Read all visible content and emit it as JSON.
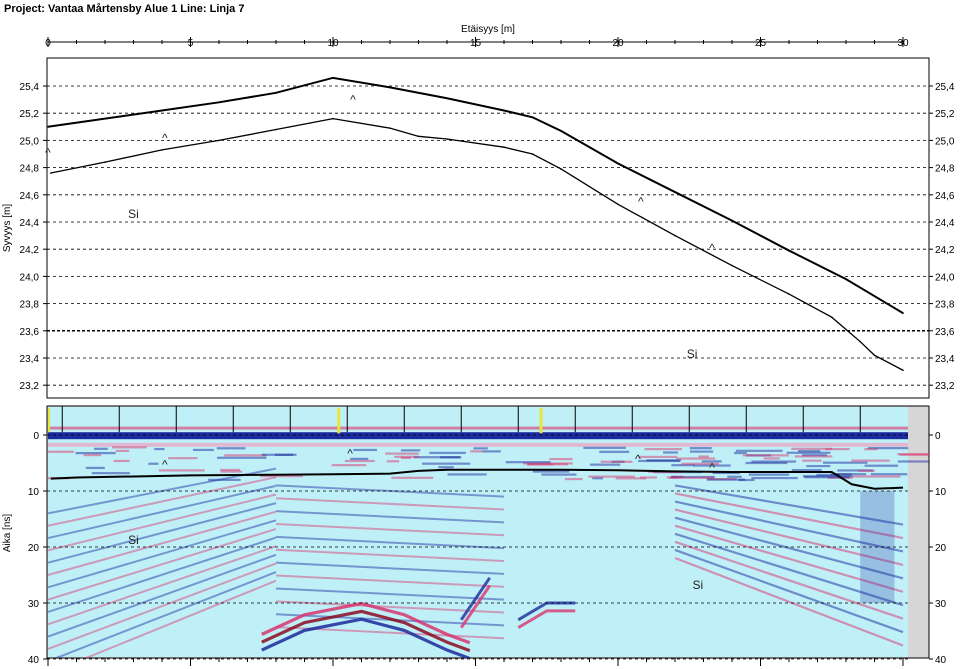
{
  "title": "Project: Vantaa Mårtensby Alue 1  Line: Linja 7",
  "chart_data": [
    {
      "type": "line",
      "xlabel": "Etäisyys [m]",
      "ylabel": "Syvyys [m]",
      "xlim": [
        0,
        30
      ],
      "ylim": [
        23.1,
        25.6
      ],
      "xticks": [
        "0",
        "5",
        "10",
        "15",
        "20",
        "25",
        "30"
      ],
      "yticks": [
        "25,4",
        "25,2",
        "25,0",
        "24,8",
        "24,6",
        "24,4",
        "24,2",
        "24,0",
        "23,8",
        "23,6",
        "23,4",
        "23,2"
      ],
      "series": [
        {
          "x": [
            0,
            2,
            4,
            6,
            8,
            10,
            12,
            14,
            16,
            17,
            18,
            20,
            22,
            24,
            26,
            28,
            30
          ],
          "y": [
            25.1,
            25.16,
            25.22,
            25.28,
            25.35,
            25.46,
            25.39,
            25.31,
            25.22,
            25.17,
            25.07,
            24.83,
            24.62,
            24.41,
            24.19,
            23.98,
            23.73
          ]
        },
        {
          "x": [
            0.1,
            2,
            4,
            6,
            8,
            10,
            12,
            13,
            14,
            16,
            17,
            18,
            20,
            22,
            24,
            26,
            27.5,
            28.5,
            29,
            30
          ],
          "y": [
            24.76,
            24.84,
            24.93,
            25.0,
            25.08,
            25.16,
            25.09,
            25.03,
            25.01,
            24.95,
            24.9,
            24.79,
            24.53,
            24.3,
            24.08,
            23.87,
            23.7,
            23.52,
            23.42,
            23.31
          ]
        }
      ],
      "annotations": [
        {
          "text": "^",
          "x": 4.1,
          "y": 24.99
        },
        {
          "text": "^",
          "x": 10.7,
          "y": 25.27
        },
        {
          "text": "^",
          "x": 20.8,
          "y": 24.52
        },
        {
          "text": "^",
          "x": 23.3,
          "y": 24.18
        },
        {
          "text": "^",
          "x": 0,
          "y": 24.88
        },
        {
          "text": "Si",
          "x": 3.0,
          "y": 24.43
        },
        {
          "text": "Si",
          "x": 22.6,
          "y": 23.4
        }
      ],
      "grid": true
    },
    {
      "type": "heatmap",
      "ylabel": "Aika [ns]",
      "xlim": [
        0,
        30
      ],
      "ylim": [
        -5,
        40
      ],
      "xticks": [
        "0",
        "5",
        "10",
        "15",
        "20",
        "25",
        "30"
      ],
      "yticks": [
        "0",
        "10",
        "20",
        "30",
        "40"
      ],
      "interface": {
        "x": [
          0.1,
          1,
          3,
          5,
          8,
          10,
          12,
          13,
          14,
          16,
          18,
          20,
          22,
          24,
          26,
          27.5,
          28.2,
          29,
          30
        ],
        "y": [
          7.8,
          7.6,
          7.4,
          7.2,
          7.1,
          7.0,
          6.9,
          6.4,
          6.2,
          6.2,
          6.2,
          6.3,
          6.5,
          6.6,
          6.6,
          6.6,
          8.8,
          9.6,
          9.4
        ]
      },
      "annotations": [
        {
          "text": "^",
          "x": 4.1,
          "y": 6
        },
        {
          "text": "^",
          "x": 10.6,
          "y": 4
        },
        {
          "text": "^",
          "x": 20.7,
          "y": 5
        },
        {
          "text": "^",
          "x": 23.3,
          "y": 6.5
        },
        {
          "text": "Si",
          "x": 3.0,
          "y": 19.5
        },
        {
          "text": "Si",
          "x": 22.8,
          "y": 27.5
        }
      ],
      "colors": {
        "background": "#bff0f8",
        "positive": "#d9356e",
        "negative": "#1b2a9e",
        "strong": "#8b0a1e"
      }
    }
  ]
}
